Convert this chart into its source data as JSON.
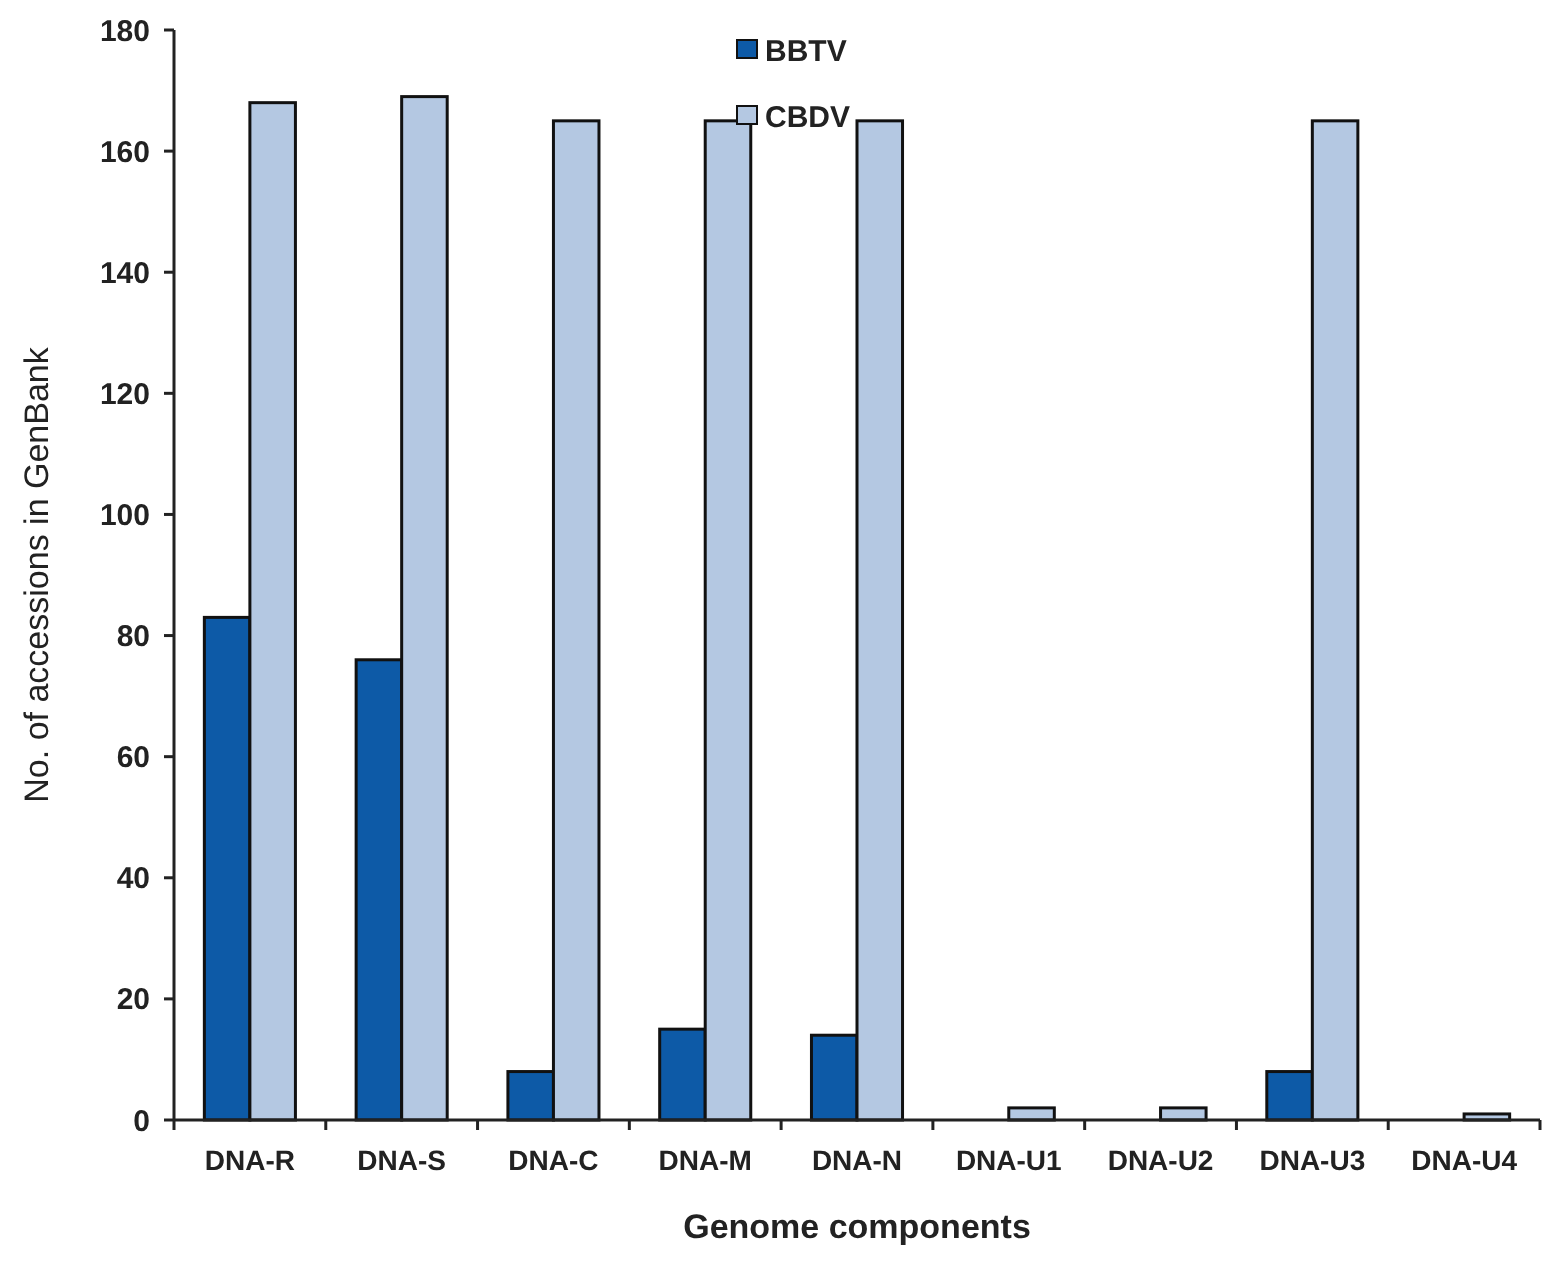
{
  "chart_data": {
    "type": "bar",
    "xlabel": "Genome components",
    "ylabel": "No. of accessions in GenBank",
    "categories": [
      "DNA-R",
      "DNA-S",
      "DNA-C",
      "DNA-M",
      "DNA-N",
      "DNA-U1",
      "DNA-U2",
      "DNA-U3",
      "DNA-U4"
    ],
    "series": [
      {
        "name": "BBTV",
        "color": "#0d5aa7",
        "values": [
          83,
          76,
          8,
          15,
          14,
          0,
          0,
          8,
          0
        ]
      },
      {
        "name": "CBDV",
        "color": "#b4c8e2",
        "values": [
          168,
          169,
          165,
          165,
          165,
          2,
          2,
          165,
          1
        ]
      }
    ],
    "ylim": [
      0,
      180
    ],
    "yticks": [
      0,
      20,
      40,
      60,
      80,
      100,
      120,
      140,
      160,
      180
    ],
    "grid": false,
    "legend": "top"
  }
}
